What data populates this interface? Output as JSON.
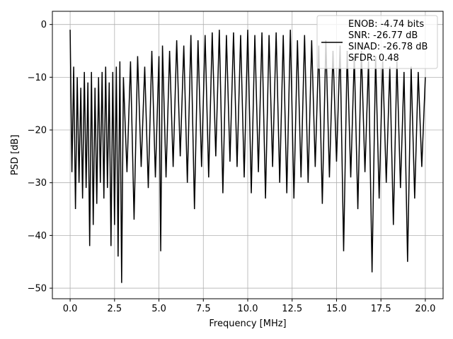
{
  "chart_data": {
    "type": "line",
    "title": "",
    "xlabel": "Frequency [MHz]",
    "ylabel": "PSD [dB]",
    "xlim": [
      -1.0,
      21.0
    ],
    "ylim": [
      -52.0,
      2.5
    ],
    "xticks": [
      0.0,
      2.5,
      5.0,
      7.5,
      10.0,
      12.5,
      15.0,
      17.5,
      20.0
    ],
    "xtick_labels": [
      "0.0",
      "2.5",
      "5.0",
      "7.5",
      "10.0",
      "12.5",
      "15.0",
      "17.5",
      "20.0"
    ],
    "yticks": [
      0,
      -10,
      -20,
      -30,
      -40,
      -50
    ],
    "ytick_labels": [
      "0",
      "−10",
      "−20",
      "−30",
      "−40",
      "−50"
    ],
    "grid": true,
    "legend_position": "top-right",
    "legend_lines": [
      "ENOB: -4.74 bits",
      "SNR: -26.77 dB",
      "SINAD: -26.78 dB",
      "SFDR: 0.48"
    ],
    "line_color": "#000000",
    "series": [
      {
        "x": [
          0.0,
          0.1,
          0.2,
          0.3,
          0.4,
          0.5,
          0.6,
          0.7,
          0.8,
          0.9,
          1.0,
          1.1,
          1.2,
          1.3,
          1.4,
          1.5,
          1.6,
          1.7,
          1.8,
          1.9,
          2.0,
          2.1,
          2.2,
          2.3,
          2.4,
          2.5,
          2.6,
          2.7,
          2.8,
          2.9,
          3.0,
          3.2,
          3.4,
          3.6,
          3.8,
          4.0,
          4.2,
          4.4,
          4.6,
          4.8,
          5.0,
          5.1,
          5.2,
          5.4,
          5.6,
          5.8,
          6.0,
          6.2,
          6.4,
          6.6,
          6.8,
          7.0,
          7.2,
          7.4,
          7.6,
          7.8,
          8.0,
          8.2,
          8.4,
          8.6,
          8.8,
          9.0,
          9.2,
          9.4,
          9.6,
          9.8,
          10.0,
          10.2,
          10.4,
          10.6,
          10.8,
          11.0,
          11.2,
          11.4,
          11.6,
          11.8,
          12.0,
          12.2,
          12.4,
          12.6,
          12.8,
          13.0,
          13.2,
          13.4,
          13.6,
          13.8,
          14.0,
          14.2,
          14.4,
          14.6,
          14.8,
          15.0,
          15.2,
          15.4,
          15.6,
          15.8,
          16.0,
          16.2,
          16.4,
          16.6,
          16.8,
          17.0,
          17.2,
          17.4,
          17.6,
          17.8,
          18.0,
          18.2,
          18.4,
          18.6,
          18.8,
          19.0,
          19.2,
          19.4,
          19.6,
          19.8,
          20.0
        ],
        "y": [
          -1.0,
          -28.0,
          -8.0,
          -35.0,
          -10.0,
          -30.0,
          -12.0,
          -33.0,
          -9.0,
          -31.0,
          -11.0,
          -42.0,
          -9.0,
          -38.0,
          -12.0,
          -34.0,
          -10.0,
          -30.0,
          -9.0,
          -33.0,
          -8.0,
          -31.0,
          -11.0,
          -42.0,
          -9.0,
          -38.0,
          -8.0,
          -44.0,
          -7.0,
          -49.0,
          -10.0,
          -28.0,
          -7.0,
          -37.0,
          -6.0,
          -27.0,
          -8.0,
          -31.0,
          -5.0,
          -29.0,
          -6.0,
          -43.0,
          -4.0,
          -29.0,
          -5.0,
          -27.0,
          -3.0,
          -25.0,
          -4.0,
          -30.0,
          -2.0,
          -35.0,
          -3.0,
          -27.0,
          -2.0,
          -29.0,
          -1.5,
          -25.0,
          -1.0,
          -32.0,
          -2.0,
          -26.0,
          -1.5,
          -27.0,
          -2.0,
          -29.0,
          -1.0,
          -32.0,
          -2.0,
          -28.0,
          -1.5,
          -33.0,
          -2.0,
          -27.0,
          -1.5,
          -30.0,
          -2.0,
          -32.0,
          -1.0,
          -33.0,
          -3.0,
          -29.0,
          -2.0,
          -30.0,
          -3.0,
          -27.0,
          -4.0,
          -34.0,
          -3.0,
          -29.0,
          -5.0,
          -26.0,
          -4.0,
          -43.0,
          -5.0,
          -29.0,
          -6.0,
          -35.0,
          -5.0,
          -28.0,
          -7.0,
          -47.0,
          -6.0,
          -33.0,
          -7.0,
          -30.0,
          -8.0,
          -38.0,
          -7.0,
          -31.0,
          -9.0,
          -45.0,
          -8.0,
          -33.0,
          -9.0,
          -27.0,
          -10.0
        ]
      }
    ]
  }
}
